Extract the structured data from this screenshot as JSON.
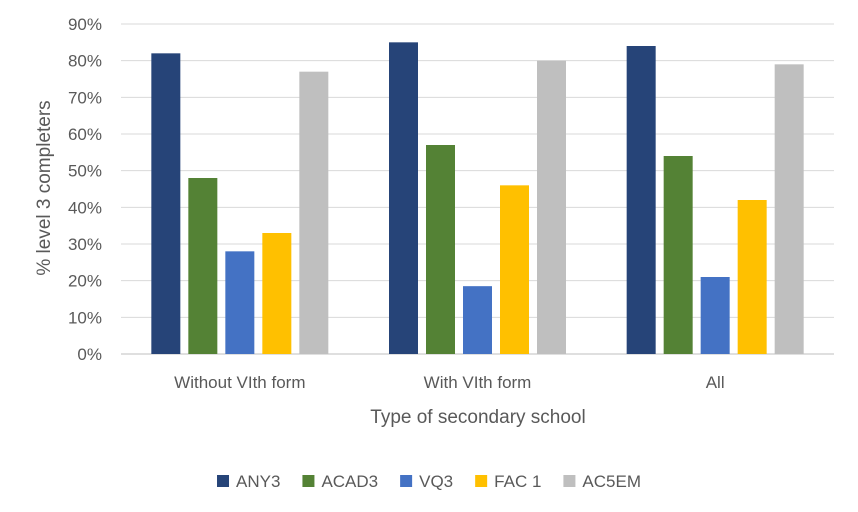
{
  "chart_data": {
    "type": "bar",
    "categories": [
      "Without VIth form",
      "With VIth form",
      "All"
    ],
    "series": [
      {
        "name": "ANY3",
        "color": "#264478",
        "values": [
          82,
          85,
          84
        ]
      },
      {
        "name": "ACAD3",
        "color": "#548235",
        "values": [
          48,
          57,
          54
        ]
      },
      {
        "name": "VQ3",
        "color": "#4472C4",
        "values": [
          28,
          18.5,
          21
        ]
      },
      {
        "name": "FAC 1",
        "color": "#FFC000",
        "values": [
          33,
          46,
          42
        ]
      },
      {
        "name": "AC5EM",
        "color": "#BFBFBF",
        "values": [
          77,
          80,
          79
        ]
      }
    ],
    "title": "",
    "xlabel": "Type of secondary school",
    "ylabel": "% level 3 completers",
    "ylim": [
      0,
      90
    ],
    "yticks": [
      "0%",
      "10%",
      "20%",
      "30%",
      "40%",
      "50%",
      "60%",
      "70%",
      "80%",
      "90%"
    ],
    "grid": true,
    "legend_position": "bottom"
  }
}
